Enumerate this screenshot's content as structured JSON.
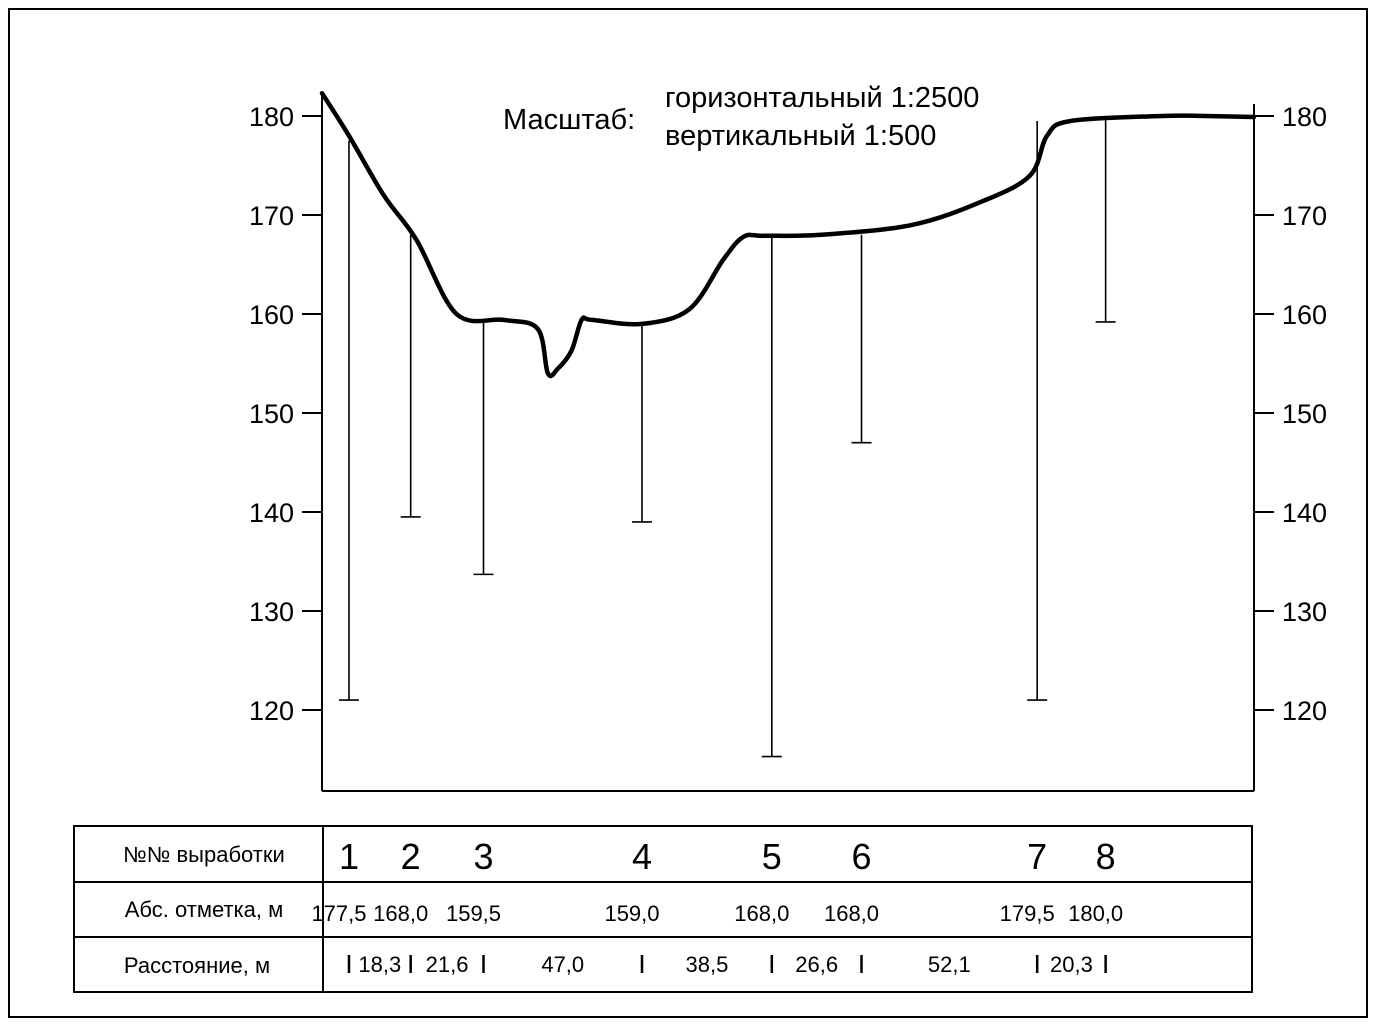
{
  "chart_data": {
    "type": "line",
    "title": "",
    "scale": {
      "label": "Масштаб:",
      "horizontal": "горизонтальный 1:2500",
      "vertical": "вертикальный 1:500"
    },
    "y_axis": {
      "ticks": [
        120,
        130,
        140,
        150,
        160,
        170,
        180
      ],
      "ylim": [
        113,
        183
      ],
      "left_and_right": true
    },
    "x": {
      "unit": "м",
      "total_m": 276.4
    },
    "profile": {
      "x_m": [
        0,
        8,
        18.3,
        28,
        39.9,
        54,
        64,
        67,
        70,
        74,
        77,
        80,
        95,
        109,
        119,
        125,
        131,
        148,
        175,
        196,
        210,
        215,
        222,
        249,
        262,
        276.4
      ],
      "elevation": [
        182.3,
        178,
        172,
        167.5,
        160,
        159.4,
        158.5,
        154,
        154.5,
        156.3,
        159.4,
        159.4,
        159,
        160.5,
        165.5,
        167.8,
        167.9,
        168,
        169,
        171.4,
        174,
        178,
        179.5,
        180,
        180,
        179.9
      ]
    },
    "boreholes": [
      {
        "num": "1",
        "x_m": 8,
        "top": 177.5,
        "bottom": 121
      },
      {
        "num": "2",
        "x_m": 26.3,
        "top": 168.0,
        "bottom": 139.5
      },
      {
        "num": "3",
        "x_m": 47.9,
        "top": 159.5,
        "bottom": 133.7
      },
      {
        "num": "4",
        "x_m": 94.9,
        "top": 159.0,
        "bottom": 139
      },
      {
        "num": "5",
        "x_m": 133.4,
        "top": 168.0,
        "bottom": 115.3
      },
      {
        "num": "6",
        "x_m": 160.0,
        "top": 168.0,
        "bottom": 147
      },
      {
        "num": "7",
        "x_m": 212.1,
        "top": 179.5,
        "bottom": 121
      },
      {
        "num": "8",
        "x_m": 232.4,
        "top": 180.0,
        "bottom": 159.2
      }
    ]
  },
  "table": {
    "row_labels": [
      "№№ выработки",
      "Абс. отметка, м",
      "Расстояние, м"
    ],
    "abs_marks": [
      "177,5",
      "168,0",
      "159,5",
      "159,0",
      "168,0",
      "168,0",
      "179,5",
      "180,0"
    ],
    "distances": [
      "18,3",
      "21,6",
      "47,0",
      "38,5",
      "26,6",
      "52,1",
      "20,3"
    ]
  }
}
